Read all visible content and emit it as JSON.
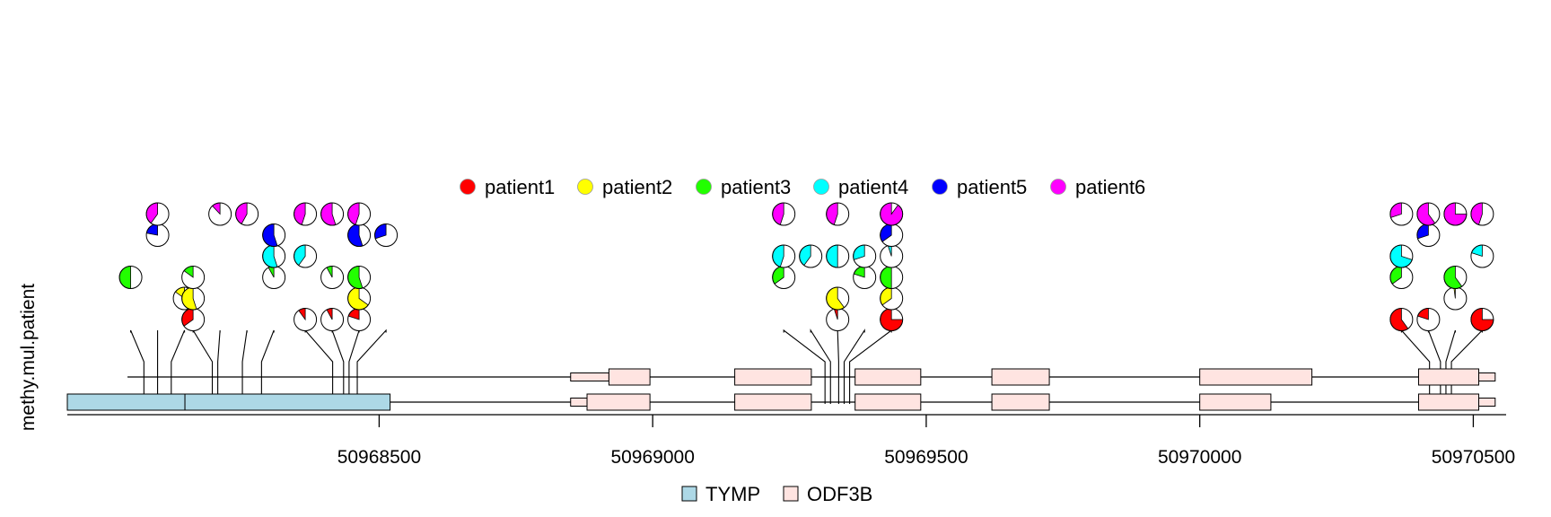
{
  "chart_data": {
    "type": "lollipop-pie",
    "ylabel": "methy.mul.patient",
    "xlim": [
      50967930,
      50970560
    ],
    "x_ticks": [
      50968500,
      50969000,
      50969500,
      50970000,
      50970500
    ],
    "tick_labels": [
      "50968500",
      "50969000",
      "50969500",
      "50970000",
      "50970500"
    ],
    "patients": [
      {
        "name": "patient1",
        "color": "#FF0000"
      },
      {
        "name": "patient2",
        "color": "#FFFF00"
      },
      {
        "name": "patient3",
        "color": "#22FF00"
      },
      {
        "name": "patient4",
        "color": "#00FFFF"
      },
      {
        "name": "patient5",
        "color": "#0000FF"
      },
      {
        "name": "patient6",
        "color": "#FF00FF"
      }
    ],
    "genes": [
      {
        "name": "TYMP",
        "color": "#ADD8E6"
      },
      {
        "name": "ODF3B",
        "color": "#FFE4E1"
      }
    ],
    "transcripts": [
      {
        "gene": "ODF3B",
        "start": 50968040,
        "end": 50970540,
        "exons": [
          [
            50968850,
            50968920,
            "utr"
          ],
          [
            50968920,
            50968995,
            "cds"
          ],
          [
            50969150,
            50969290,
            "cds"
          ],
          [
            50969370,
            50969490,
            "cds"
          ],
          [
            50969620,
            50969725,
            "cds"
          ],
          [
            50970000,
            50970205,
            "cds"
          ],
          [
            50970400,
            50970510,
            "cds"
          ],
          [
            50970510,
            50970540,
            "utr"
          ]
        ]
      },
      {
        "gene": "TYMP",
        "start": 50967930,
        "end": 50970540,
        "exons": [
          [
            50967930,
            50968145,
            "tymp"
          ],
          [
            50968145,
            50968520,
            "tymp"
          ],
          [
            50968850,
            50968880,
            "utr"
          ],
          [
            50968880,
            50968995,
            "cds"
          ],
          [
            50969150,
            50969290,
            "cds"
          ],
          [
            50969370,
            50969490,
            "cds"
          ],
          [
            50969620,
            50969725,
            "cds"
          ],
          [
            50970000,
            50970130,
            "cds"
          ],
          [
            50970400,
            50970510,
            "cds"
          ],
          [
            50970510,
            50970540,
            "utr"
          ]
        ]
      }
    ],
    "sites": [
      {
        "x": 50968070,
        "pies": [
          {
            "patient": 3,
            "value": 0.5
          }
        ]
      },
      {
        "x": 50968095,
        "pies": [
          {
            "patient": 5,
            "value": 0.22
          },
          {
            "patient": 6,
            "value": 0.4
          }
        ]
      },
      {
        "x": 50968120,
        "pies": [
          {
            "patient": 2,
            "value": 0.15
          }
        ]
      },
      {
        "x": 50968195,
        "pies": [
          {
            "patient": 1,
            "value": 0.35
          },
          {
            "patient": 2,
            "value": 0.55
          },
          {
            "patient": 3,
            "value": 0.15
          }
        ]
      },
      {
        "x": 50968205,
        "pies": [
          {
            "patient": 6,
            "value": 0.12
          }
        ]
      },
      {
        "x": 50968250,
        "pies": [
          {
            "patient": 6,
            "value": 0.42
          }
        ]
      },
      {
        "x": 50968285,
        "pies": [
          {
            "patient": 3,
            "value": 0.08
          },
          {
            "patient": 4,
            "value": 0.55
          },
          {
            "patient": 5,
            "value": 0.55
          }
        ]
      },
      {
        "x": 50968415,
        "pies": [
          {
            "patient": 1,
            "value": 0.1
          },
          {
            "patient": 4,
            "value": 0.4
          },
          {
            "patient": 6,
            "value": 0.45
          }
        ]
      },
      {
        "x": 50968435,
        "pies": [
          {
            "patient": 1,
            "value": 0.08
          },
          {
            "patient": 3,
            "value": 0.08
          },
          {
            "patient": 6,
            "value": 0.55
          }
        ]
      },
      {
        "x": 50968445,
        "pies": [
          {
            "patient": 1,
            "value": 0.2
          },
          {
            "patient": 2,
            "value": 0.65
          },
          {
            "patient": 3,
            "value": 0.55
          },
          {
            "patient": 5,
            "value": 0.55
          },
          {
            "patient": 6,
            "value": 0.45
          }
        ]
      },
      {
        "x": 50968460,
        "pies": [
          {
            "patient": 5,
            "value": 0.3
          }
        ]
      },
      {
        "x": 50969315,
        "pies": [
          {
            "patient": 3,
            "value": 0.35
          },
          {
            "patient": 4,
            "value": 0.45
          },
          {
            "patient": 6,
            "value": 0.45
          }
        ]
      },
      {
        "x": 50969325,
        "pies": [
          {
            "patient": 4,
            "value": 0.4
          }
        ]
      },
      {
        "x": 50969340,
        "pies": [
          {
            "patient": 1,
            "value": 0.05
          },
          {
            "patient": 2,
            "value": 0.6
          },
          {
            "patient": 4,
            "value": 0.5
          },
          {
            "patient": 6,
            "value": 0.45
          }
        ]
      },
      {
        "x": 50969350,
        "pies": [
          {
            "patient": 3,
            "value": 0.2
          },
          {
            "patient": 4,
            "value": 0.3
          }
        ]
      },
      {
        "x": 50969360,
        "pies": [
          {
            "patient": 1,
            "value": 0.75
          },
          {
            "patient": 2,
            "value": 0.35
          },
          {
            "patient": 3,
            "value": 0.5
          },
          {
            "patient": 4,
            "value": 0.05
          },
          {
            "patient": 5,
            "value": 0.35
          },
          {
            "patient": 6,
            "value": 0.9
          }
        ]
      },
      {
        "x": 50970420,
        "pies": [
          {
            "patient": 1,
            "value": 0.6
          },
          {
            "patient": 3,
            "value": 0.35
          },
          {
            "patient": 4,
            "value": 0.7
          },
          {
            "patient": 6,
            "value": 0.3
          }
        ]
      },
      {
        "x": 50970440,
        "pies": [
          {
            "patient": 1,
            "value": 0.2
          },
          {
            "patient": 5,
            "value": 0.3
          },
          {
            "patient": 6,
            "value": 0.6
          }
        ]
      },
      {
        "x": 50970450,
        "pies": [
          {
            "patient": 2,
            "value": 0.02
          },
          {
            "patient": 3,
            "value": 0.6
          },
          {
            "patient": 6,
            "value": 0.75
          }
        ]
      },
      {
        "x": 50970460,
        "pies": [
          {
            "patient": 1,
            "value": 0.75
          },
          {
            "patient": 4,
            "value": 0.2
          },
          {
            "patient": 6,
            "value": 0.45
          }
        ]
      }
    ]
  }
}
